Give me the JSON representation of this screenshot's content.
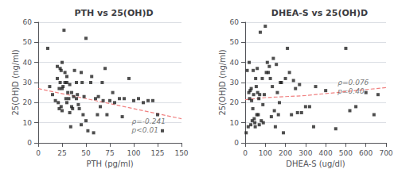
{
  "chart_data": [
    {
      "type": "scatter",
      "title": "PTH vs 25(OH)D",
      "xlabel": "PTH (pg/ml)",
      "ylabel": "25(OH)D (ng/ml)",
      "xlim": [
        0,
        150
      ],
      "ylim": [
        0,
        60
      ],
      "xticks": [
        0,
        25,
        50,
        75,
        100,
        125,
        150
      ],
      "yticks": [
        0,
        10,
        20,
        30,
        40,
        50,
        60
      ],
      "grid": true,
      "series": [
        {
          "type": "scatter",
          "color": "#222222",
          "marker": "square",
          "x": [
            10,
            12,
            15,
            18,
            20,
            20,
            21,
            22,
            22,
            23,
            23,
            24,
            24,
            25,
            25,
            25,
            26,
            27,
            28,
            28,
            29,
            30,
            30,
            30,
            31,
            32,
            33,
            33,
            34,
            35,
            35,
            36,
            37,
            38,
            40,
            40,
            41,
            42,
            43,
            45,
            45,
            46,
            47,
            48,
            50,
            50,
            52,
            55,
            56,
            58,
            60,
            62,
            63,
            65,
            67,
            68,
            70,
            72,
            75,
            78,
            80,
            85,
            88,
            90,
            95,
            100,
            105,
            110,
            115,
            120,
            125,
            130
          ],
          "values": [
            47,
            28,
            24,
            21,
            32,
            38,
            20,
            27,
            17,
            37,
            30,
            36,
            18,
            16,
            27,
            40,
            28,
            56,
            35,
            30,
            22,
            20,
            30,
            33,
            25,
            22,
            15,
            29,
            8,
            18,
            25,
            17,
            23,
            36,
            22,
            30,
            24,
            19,
            17,
            35,
            9,
            30,
            14,
            23,
            52,
            11,
            6,
            30,
            33,
            5,
            22,
            14,
            23,
            18,
            30,
            21,
            37,
            14,
            21,
            25,
            20,
            22,
            13,
            22,
            32,
            21,
            22,
            20,
            21,
            21,
            14,
            6
          ]
        },
        {
          "type": "line",
          "color": "#f08080",
          "line_style": "dashed",
          "x": [
            0,
            150
          ],
          "values": [
            27,
            12
          ]
        }
      ],
      "annotations": [
        {
          "text": "ρ=-0.241\np<0.01",
          "x": 98,
          "y": 13
        }
      ]
    },
    {
      "type": "scatter",
      "title": "DHEA-S vs 25(OH)D",
      "xlabel": "DHEA-S (ug/dl)",
      "ylabel": "25(OH)D (ng/ml)",
      "xlim": [
        0,
        700
      ],
      "ylim": [
        0,
        60
      ],
      "xticks": [
        0,
        100,
        200,
        300,
        400,
        500,
        600,
        700
      ],
      "yticks": [
        0,
        10,
        20,
        30,
        40,
        50,
        60
      ],
      "grid": true,
      "series": [
        {
          "type": "scatter",
          "color": "#222222",
          "marker": "square",
          "x": [
            5,
            10,
            15,
            18,
            20,
            22,
            25,
            28,
            30,
            32,
            35,
            38,
            40,
            42,
            45,
            48,
            50,
            52,
            55,
            58,
            60,
            62,
            65,
            68,
            70,
            72,
            75,
            80,
            85,
            88,
            90,
            95,
            100,
            105,
            110,
            115,
            120,
            125,
            130,
            135,
            140,
            145,
            150,
            155,
            160,
            165,
            170,
            175,
            180,
            190,
            200,
            210,
            220,
            230,
            240,
            250,
            260,
            270,
            280,
            300,
            320,
            340,
            350,
            400,
            450,
            500,
            520,
            550,
            600,
            640,
            660
          ],
          "values": [
            5,
            36,
            8,
            25,
            40,
            22,
            26,
            9,
            27,
            21,
            11,
            17,
            36,
            24,
            12,
            10,
            8,
            32,
            28,
            14,
            37,
            25,
            14,
            22,
            9,
            24,
            55,
            11,
            32,
            19,
            10,
            24,
            58,
            35,
            40,
            35,
            38,
            32,
            13,
            28,
            42,
            16,
            8,
            39,
            25,
            14,
            20,
            30,
            30,
            5,
            32,
            47,
            35,
            14,
            31,
            27,
            15,
            29,
            15,
            18,
            18,
            8,
            28,
            26,
            7,
            47,
            16,
            18,
            25,
            14,
            24
          ]
        },
        {
          "type": "line",
          "color": "#f08080",
          "line_style": "dashed",
          "x": [
            0,
            100,
            200,
            300,
            400,
            500,
            600,
            700
          ],
          "values": [
            21.5,
            22.5,
            23.0,
            23.5,
            24.5,
            25.5,
            26.5,
            27.5
          ]
        }
      ],
      "annotations": [
        {
          "text": "ρ=0.076\np=0.40",
          "x": 460,
          "y": 32
        }
      ]
    }
  ]
}
